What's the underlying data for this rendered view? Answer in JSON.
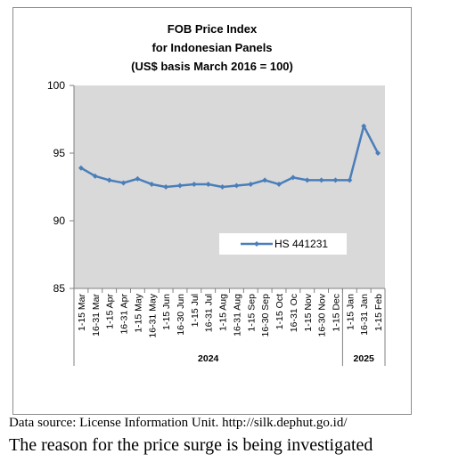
{
  "chart_data": {
    "type": "line",
    "title": "FOB Price Index",
    "subtitle": "for Indonesian Panels",
    "subtitle2": "(US$ basis March 2016 = 100)",
    "categories": [
      "1-15 Mar",
      "16-31 Mar",
      "1-15 Apr",
      "16-31 Apr",
      "1-15 May",
      "16-31 May",
      "1-15 Jun",
      "16-30 Jun",
      "1-15 Jul",
      "16-31 Jul",
      "1-15 Aug",
      "16-31 Aug",
      "1-15 Sep",
      "16-30 Sep",
      "1-15 Oct",
      "16-31 Oc",
      "1-15 Nov",
      "16-30 Nov",
      "1-15 Dec",
      "1-15 Jan",
      "16-31 Jan",
      "1-15 Feb"
    ],
    "groups": [
      {
        "label": "2024",
        "count": 19
      },
      {
        "label": "2025",
        "count": 3
      }
    ],
    "series": [
      {
        "name": "HS 441231",
        "color": "#4a7ebb",
        "values": [
          93.9,
          93.3,
          93.0,
          92.8,
          93.1,
          92.7,
          92.5,
          92.6,
          92.7,
          92.7,
          92.5,
          92.6,
          92.7,
          93.0,
          92.7,
          93.2,
          93.0,
          93.0,
          93.0,
          93.0,
          97.0,
          95.0
        ]
      }
    ],
    "ylim": [
      85,
      100
    ],
    "yticks": [
      85,
      90,
      95,
      100
    ],
    "legend_position": "center-right",
    "grid": false
  },
  "footer": {
    "source": "Data source: License Information Unit. http://silk.dephut.go.id/",
    "note": "The reason for the price surge is being investigated"
  },
  "colors": {
    "plot_bg": "#d9d9d9",
    "line": "#4a7ebb"
  }
}
